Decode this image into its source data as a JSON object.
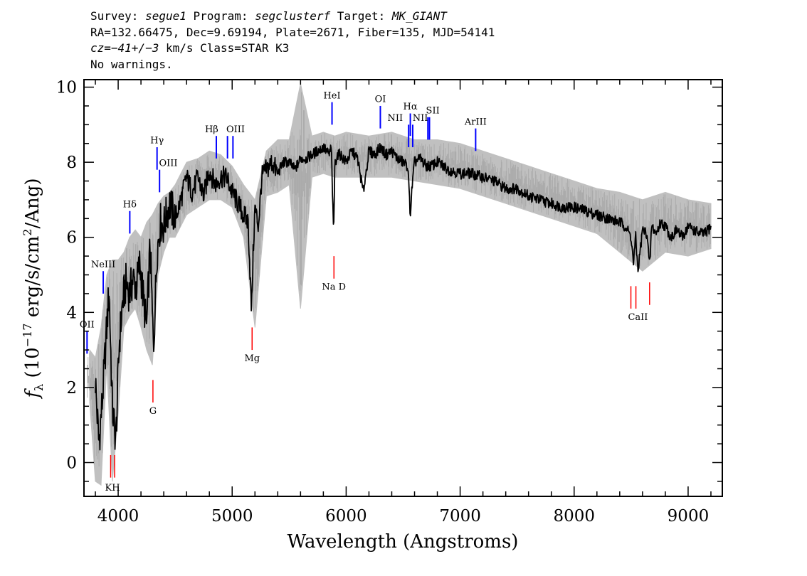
{
  "header": {
    "line1": {
      "survey_label": "Survey: ",
      "survey": "segue1",
      "program_label": " Program: ",
      "program": "segclusterf",
      "target_label": " Target: ",
      "target": "MK_GIANT"
    },
    "line2": "RA=132.66475, Dec=9.69194, Plate=2671, Fiber=135, MJD=54141",
    "line3": {
      "cz_label": "cz",
      "cz_value": "=−41+/−3",
      "rest": " km/s Class=STAR K3"
    },
    "line4": "No warnings."
  },
  "chart_data": {
    "type": "line",
    "title": "",
    "xlabel": "Wavelength (Angstroms)",
    "ylabel_symbol": "f",
    "ylabel_sub": "λ",
    "ylabel_pre": " (10",
    "ylabel_exp": "−17",
    "ylabel_mid": " erg/s/cm",
    "ylabel_exp2": "2",
    "ylabel_post": "/Ang)",
    "xlim": [
      3700,
      9300
    ],
    "ylim": [
      -0.9,
      10.2
    ],
    "x_ticks": [
      4000,
      5000,
      6000,
      7000,
      8000,
      9000
    ],
    "y_ticks": [
      0,
      2,
      4,
      6,
      8,
      10
    ],
    "x_minor_step": 200,
    "y_minor_step": 0.5,
    "grid": false,
    "series": [
      {
        "role": "flux",
        "color": "#000000",
        "x": [
          3800,
          3830,
          3860,
          3890,
          3920,
          3950,
          3980,
          4010,
          4040,
          4070,
          4100,
          4130,
          4160,
          4190,
          4220,
          4250,
          4280,
          4310,
          4340,
          4370,
          4400,
          4450,
          4500,
          4550,
          4600,
          4650,
          4700,
          4750,
          4800,
          4850,
          4900,
          4950,
          5000,
          5050,
          5100,
          5140,
          5170,
          5180,
          5200,
          5230,
          5260,
          5300,
          5350,
          5400,
          5450,
          5500,
          5550,
          5600,
          5650,
          5700,
          5750,
          5800,
          5850,
          5870,
          5890,
          5900,
          5920,
          5950,
          6000,
          6050,
          6100,
          6150,
          6200,
          6250,
          6300,
          6350,
          6400,
          6450,
          6500,
          6540,
          6563,
          6580,
          6600,
          6650,
          6700,
          6750,
          6800,
          6900,
          7000,
          7100,
          7200,
          7300,
          7400,
          7500,
          7600,
          7700,
          7800,
          7900,
          8000,
          8100,
          8200,
          8300,
          8400,
          8450,
          8500,
          8520,
          8540,
          8560,
          8600,
          8640,
          8662,
          8680,
          8720,
          8760,
          8800,
          8850,
          8900,
          8950,
          9000,
          9050,
          9100,
          9150,
          9200
        ],
        "y": [
          2.2,
          0.5,
          1.6,
          3.1,
          4.6,
          1.4,
          0.6,
          3.2,
          4.3,
          4.8,
          4.5,
          4.9,
          4.7,
          5.3,
          4.4,
          3.6,
          5.8,
          3.0,
          5.6,
          6.4,
          6.3,
          6.9,
          6.5,
          7.0,
          7.6,
          7.2,
          7.6,
          7.1,
          7.8,
          7.4,
          7.6,
          7.6,
          7.2,
          6.9,
          6.6,
          6.4,
          4.0,
          5.2,
          6.8,
          6.3,
          7.6,
          7.8,
          8.0,
          7.7,
          8.0,
          8.0,
          7.8,
          8.1,
          8.1,
          8.2,
          8.3,
          8.4,
          8.2,
          8.4,
          6.0,
          7.9,
          8.2,
          8.2,
          8.0,
          8.3,
          8.1,
          7.2,
          8.3,
          8.2,
          8.4,
          8.2,
          8.3,
          8.1,
          8.0,
          7.9,
          6.6,
          7.4,
          8.0,
          8.1,
          7.9,
          7.9,
          8.0,
          7.8,
          7.7,
          7.7,
          7.6,
          7.5,
          7.3,
          7.3,
          7.1,
          7.0,
          6.9,
          6.8,
          6.8,
          6.7,
          6.6,
          6.5,
          6.4,
          6.3,
          6.0,
          5.3,
          6.0,
          5.1,
          6.2,
          6.1,
          5.2,
          6.3,
          6.1,
          6.4,
          6.3,
          6.0,
          6.2,
          6.0,
          6.3,
          6.2,
          6.1,
          6.1,
          6.3
        ]
      },
      {
        "role": "error",
        "color": "#c0c0c0",
        "x": [
          3750,
          3800,
          3850,
          3900,
          3950,
          4000,
          4050,
          4100,
          4150,
          4200,
          4250,
          4300,
          4350,
          4400,
          4450,
          4500,
          4600,
          4700,
          4800,
          4900,
          5000,
          5100,
          5200,
          5300,
          5400,
          5500,
          5600,
          5700,
          5800,
          5900,
          6000,
          6200,
          6400,
          6600,
          6800,
          7000,
          7200,
          7400,
          7600,
          7800,
          8000,
          8200,
          8400,
          8600,
          8800,
          9000,
          9200
        ],
        "lower": [
          1.6,
          -0.5,
          -0.6,
          2.6,
          -0.5,
          1.3,
          3.6,
          3.9,
          4.1,
          3.6,
          3.0,
          2.6,
          5.0,
          5.6,
          6.0,
          6.0,
          6.6,
          6.8,
          7.0,
          7.0,
          6.8,
          6.0,
          3.6,
          7.1,
          7.2,
          7.4,
          4.1,
          7.6,
          7.7,
          7.6,
          7.6,
          7.6,
          7.6,
          7.5,
          7.4,
          7.3,
          7.1,
          6.9,
          6.7,
          6.5,
          6.3,
          6.1,
          5.6,
          5.1,
          5.6,
          5.5,
          5.7
        ],
        "upper": [
          3.0,
          2.8,
          3.6,
          5.0,
          5.4,
          5.4,
          5.6,
          6.0,
          6.2,
          6.0,
          6.4,
          6.6,
          6.9,
          7.1,
          7.2,
          7.4,
          8.0,
          8.1,
          8.3,
          8.2,
          7.9,
          7.4,
          7.0,
          8.3,
          8.6,
          8.6,
          10.1,
          8.7,
          8.8,
          8.7,
          8.8,
          8.7,
          8.8,
          8.6,
          8.6,
          8.5,
          8.3,
          8.1,
          7.9,
          7.7,
          7.5,
          7.3,
          7.2,
          7.0,
          7.2,
          7.0,
          6.9
        ]
      }
    ],
    "emission_lines": [
      {
        "label": "OII",
        "x": 3727,
        "y1": 2.9,
        "y2": 3.5
      },
      {
        "label": "NeIII",
        "x": 3869,
        "y1": 4.5,
        "y2": 5.1
      },
      {
        "label": "Hδ",
        "x": 4102,
        "y1": 6.1,
        "y2": 6.7
      },
      {
        "label": "Hγ",
        "x": 4341,
        "y1": 8.4,
        "y2": 7.8
      },
      {
        "label": "OIII",
        "x": 4363,
        "y1": 7.2,
        "y2": 7.8
      },
      {
        "label": "Hβ",
        "x": 4861,
        "y1": 8.1,
        "y2": 8.7
      },
      {
        "label": "OIII",
        "x": 4959,
        "y1": 8.1,
        "y2": 8.7
      },
      {
        "label": "OIII",
        "x": 5007,
        "y1": 8.1,
        "y2": 8.7
      },
      {
        "label": "HeI",
        "x": 5876,
        "y1": 9.0,
        "y2": 9.6
      },
      {
        "label": "OI",
        "x": 6300,
        "y1": 8.9,
        "y2": 9.5
      },
      {
        "label": "NII",
        "x": 6548,
        "y1": 8.4,
        "y2": 9.0
      },
      {
        "label": "Hα",
        "x": 6563,
        "y1": 8.7,
        "y2": 9.3
      },
      {
        "label": "NII",
        "x": 6584,
        "y1": 8.4,
        "y2": 9.0
      },
      {
        "label": "SII",
        "x": 6717,
        "y1": 8.6,
        "y2": 9.2
      },
      {
        "label": "SII",
        "x": 6731,
        "y1": 8.6,
        "y2": 9.2
      },
      {
        "label": "ArIII",
        "x": 7136,
        "y1": 8.3,
        "y2": 8.9
      }
    ],
    "emission_labels": [
      {
        "text": "OII",
        "x": 3727,
        "y": 3.6
      },
      {
        "text": "NeIII",
        "x": 3869,
        "y": 5.2
      },
      {
        "text": "Hδ",
        "x": 4102,
        "y": 6.8
      },
      {
        "text": "Hγ",
        "x": 4341,
        "y": 8.5
      },
      {
        "text": "OIII",
        "x": 4440,
        "y": 7.9
      },
      {
        "text": "Hβ",
        "x": 4820,
        "y": 8.8
      },
      {
        "text": "OIII",
        "x": 5030,
        "y": 8.8
      },
      {
        "text": "HeI",
        "x": 5876,
        "y": 9.7
      },
      {
        "text": "OI",
        "x": 6300,
        "y": 9.6
      },
      {
        "text": "NII",
        "x": 6430,
        "y": 9.1
      },
      {
        "text": "Hα",
        "x": 6563,
        "y": 9.4
      },
      {
        "text": "SII",
        "x": 6760,
        "y": 9.3
      },
      {
        "text": "NII",
        "x": 6650,
        "y": 9.1
      },
      {
        "text": "ArIII",
        "x": 7136,
        "y": 9.0
      }
    ],
    "absorption_lines": [
      {
        "label": "K",
        "x": 3934,
        "y1": -0.4,
        "y2": 0.2
      },
      {
        "label": "H",
        "x": 3969,
        "y1": -0.4,
        "y2": 0.2
      },
      {
        "label": "G",
        "x": 4305,
        "y1": 1.6,
        "y2": 2.2
      },
      {
        "label": "Mg",
        "x": 5175,
        "y1": 3.0,
        "y2": 3.6
      },
      {
        "label": "Na D",
        "x": 5893,
        "y1": 4.9,
        "y2": 5.5
      },
      {
        "label": "CaII",
        "x": 8498,
        "y1": 4.1,
        "y2": 4.7
      },
      {
        "label": "CaII",
        "x": 8542,
        "y1": 4.1,
        "y2": 4.7
      },
      {
        "label": "CaII",
        "x": 8662,
        "y1": 4.2,
        "y2": 4.8
      }
    ],
    "absorption_labels": [
      {
        "text": "KH",
        "x": 3950,
        "y": -0.75
      },
      {
        "text": "G",
        "x": 4305,
        "y": 1.3
      },
      {
        "text": "Mg",
        "x": 5175,
        "y": 2.7
      },
      {
        "text": "Na D",
        "x": 5893,
        "y": 4.6
      },
      {
        "text": "CaII",
        "x": 8560,
        "y": 3.8
      }
    ],
    "emission_color": "#0000ff",
    "absorption_color": "#ff0000"
  }
}
